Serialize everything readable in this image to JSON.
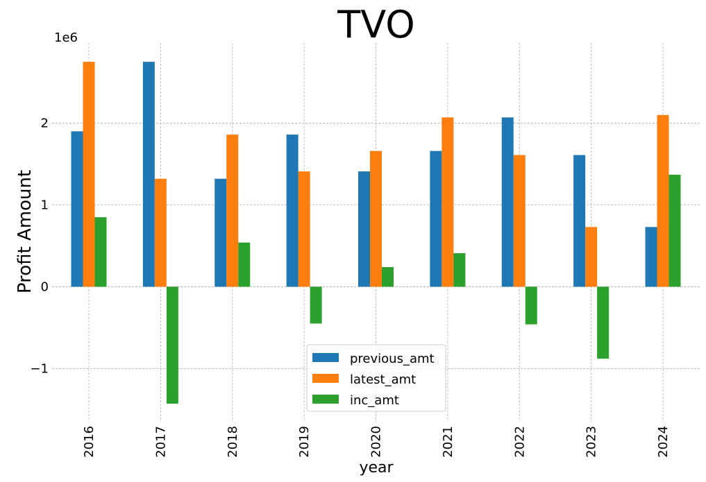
{
  "chart_data": {
    "type": "bar",
    "title": "TVO",
    "xlabel": "year",
    "ylabel": "Profit Amount",
    "y_scale_label": "1e6",
    "categories": [
      "2016",
      "2017",
      "2018",
      "2019",
      "2020",
      "2021",
      "2022",
      "2023",
      "2024"
    ],
    "series": [
      {
        "name": "previous_amt",
        "color": "#1f77b4",
        "values": [
          1900000,
          2750000,
          1320000,
          1860000,
          1410000,
          1660000,
          2070000,
          1610000,
          730000
        ]
      },
      {
        "name": "latest_amt",
        "color": "#ff7f0e",
        "values": [
          2750000,
          1320000,
          1860000,
          1410000,
          1660000,
          2070000,
          1610000,
          730000,
          2100000
        ]
      },
      {
        "name": "inc_amt",
        "color": "#2ca02c",
        "values": [
          850000,
          -1430000,
          540000,
          -450000,
          240000,
          410000,
          -460000,
          -880000,
          1370000
        ]
      }
    ],
    "yticks": [
      {
        "value": -1000000,
        "label": "−1"
      },
      {
        "value": 0,
        "label": "0"
      },
      {
        "value": 1000000,
        "label": "1"
      },
      {
        "value": 2000000,
        "label": "2"
      }
    ],
    "ylim": [
      -1650000,
      2980000
    ],
    "grid": true,
    "legend_position": "lower-center"
  }
}
